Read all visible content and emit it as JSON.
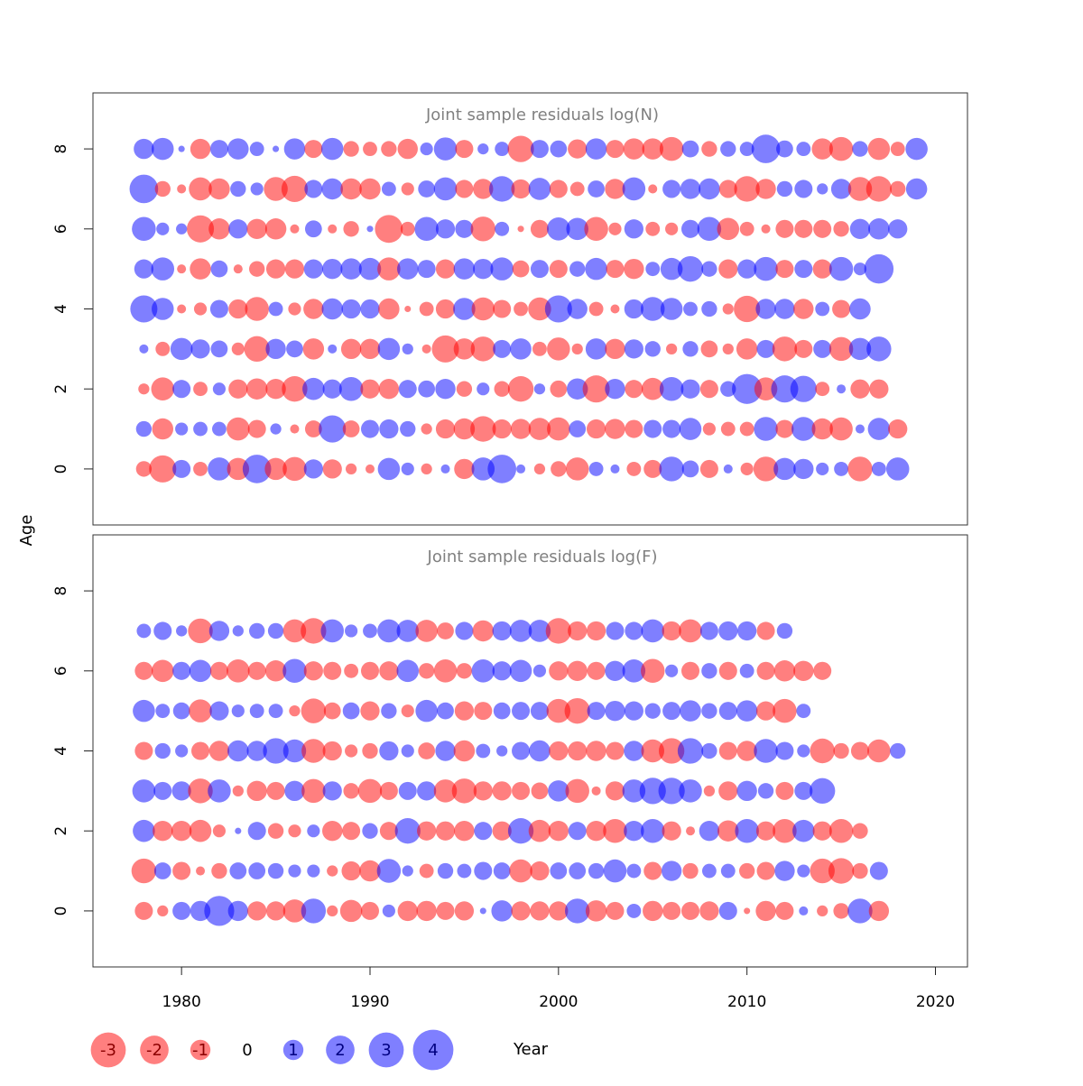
{
  "chart_data": {
    "type": "bubble",
    "shared_x": {
      "label": "Year",
      "range": [
        1975.3,
        2021.7
      ],
      "ticks": [
        1980,
        1990,
        2000,
        2010,
        2020
      ]
    },
    "shared_y": {
      "label": "Age",
      "range": [
        -1.4,
        9.4
      ],
      "ticks": [
        0,
        2,
        4,
        6,
        8
      ]
    },
    "colors": {
      "positive": "#0000FF",
      "negative": "#FF0000",
      "opacity": 0.5,
      "frame": "#333333",
      "title": "#808080"
    },
    "years": [
      1978,
      1979,
      1980,
      1981,
      1982,
      1983,
      1984,
      1985,
      1986,
      1987,
      1988,
      1989,
      1990,
      1991,
      1992,
      1993,
      1994,
      1995,
      1996,
      1997,
      1998,
      1999,
      2000,
      2001,
      2002,
      2003,
      2004,
      2005,
      2006,
      2007,
      2008,
      2009,
      2010,
      2011,
      2012,
      2013,
      2014,
      2015,
      2016,
      2017,
      2018,
      2019
    ],
    "legend": [
      {
        "label": "-3",
        "value": -3
      },
      {
        "label": "-2",
        "value": -2
      },
      {
        "label": "-1",
        "value": -1
      },
      {
        "label": "0",
        "value": 0
      },
      {
        "label": "1",
        "value": 1
      },
      {
        "label": "2",
        "value": 2
      },
      {
        "label": "3",
        "value": 3
      },
      {
        "label": "4",
        "value": 4
      }
    ],
    "panels": [
      {
        "title": "Joint sample residuals log(N)",
        "ages": [
          0,
          1,
          2,
          3,
          4,
          5,
          6,
          7,
          8
        ],
        "residuals": [
          [
            -0.6,
            -1.8,
            0.8,
            -0.5,
            1.3,
            -1.2,
            2.0,
            -1.2,
            -1.4,
            0.9,
            -0.9,
            -0.3,
            -0.2,
            1.2,
            0.4,
            -0.3,
            0.2,
            -1.0,
            1.3,
            2.0,
            0.2,
            -0.3,
            -0.6,
            -1.3,
            0.5,
            0.2,
            -0.5,
            -0.8,
            1.5,
            0.7,
            -0.8,
            0.2,
            -0.4,
            -1.5,
            1.2,
            1.0,
            0.4,
            0.5,
            -1.5,
            0.5,
            1.3
          ],
          [
            0.6,
            -1.1,
            0.4,
            0.5,
            0.5,
            -1.3,
            -0.8,
            0.3,
            -0.2,
            -0.7,
            1.8,
            -0.7,
            0.8,
            0.9,
            0.6,
            -0.3,
            -0.9,
            -1.1,
            -1.6,
            -0.9,
            -1.0,
            -1.2,
            -1.3,
            0.7,
            -0.9,
            -1.0,
            -0.8,
            0.8,
            0.8,
            1.2,
            -0.4,
            -0.5,
            -0.5,
            1.4,
            -0.8,
            1.4,
            -1.1,
            -1.3,
            0.2,
            1.2,
            -0.9
          ],
          [
            -0.3,
            -1.3,
            0.8,
            -0.5,
            0.4,
            -0.9,
            -1.1,
            -1.0,
            -1.6,
            1.2,
            0.9,
            1.4,
            -0.9,
            -1.0,
            0.8,
            0.7,
            1.0,
            -0.6,
            0.4,
            -0.6,
            -1.6,
            0.3,
            -0.7,
            1.1,
            -1.8,
            1.0,
            -0.8,
            -1.2,
            1.4,
            0.9,
            -0.8,
            0.6,
            2.2,
            -1.3,
            1.8,
            1.7,
            -0.5,
            0.2,
            -0.9,
            -0.9
          ],
          [
            0.2,
            -0.5,
            1.2,
            0.9,
            0.7,
            -0.4,
            -1.6,
            1.0,
            0.7,
            -1.1,
            0.2,
            -1.0,
            -1.0,
            1.2,
            0.3,
            -0.2,
            -1.8,
            -1.1,
            -1.5,
            0.8,
            1.1,
            -0.5,
            -1.3,
            -0.3,
            1.1,
            -1.0,
            0.9,
            0.6,
            -0.3,
            0.6,
            -0.7,
            -0.3,
            -1.1,
            0.8,
            -1.5,
            -0.8,
            0.8,
            -1.4,
            1.2,
            1.5
          ],
          [
            1.8,
            1.2,
            -0.2,
            -0.4,
            0.8,
            -0.9,
            -1.4,
            0.5,
            -0.4,
            -1.0,
            1.1,
            0.9,
            0.9,
            -1.1,
            -0.1,
            -0.5,
            -0.9,
            1.2,
            -1.3,
            -0.8,
            -0.5,
            -1.3,
            1.8,
            1.0,
            -0.5,
            -0.2,
            0.9,
            1.4,
            1.2,
            0.5,
            0.6,
            -0.3,
            -1.7,
            1.0,
            1.0,
            -1.0,
            0.5,
            -0.8,
            1.1
          ],
          [
            0.9,
            1.3,
            -0.2,
            -1.1,
            0.7,
            -0.2,
            -0.6,
            -0.9,
            -0.9,
            0.9,
            1.0,
            1.1,
            1.2,
            -1.3,
            1.1,
            0.8,
            -0.9,
            1.1,
            1.0,
            1.3,
            -0.7,
            0.8,
            -0.8,
            0.6,
            1.2,
            -0.8,
            -1.0,
            0.5,
            1.2,
            1.6,
            0.6,
            -0.9,
            0.9,
            1.4,
            -0.8,
            0.8,
            -0.9,
            1.4,
            0.4,
            2.1
          ],
          [
            1.4,
            0.4,
            0.3,
            -1.8,
            -1.1,
            0.9,
            -1.0,
            -1.1,
            -0.2,
            0.7,
            -0.2,
            -0.6,
            0.1,
            -1.9,
            -0.5,
            1.4,
            0.9,
            0.8,
            -1.5,
            0.5,
            -0.1,
            -0.8,
            1.3,
            1.2,
            -1.4,
            -0.4,
            0.9,
            -0.5,
            -0.4,
            0.8,
            1.4,
            -1.2,
            -0.5,
            -0.2,
            -0.8,
            -0.8,
            -0.8,
            -0.6,
            1.0,
            1.1,
            0.9
          ],
          [
            2.0,
            -0.6,
            -0.2,
            -1.3,
            -1.1,
            0.6,
            0.4,
            -1.4,
            -1.7,
            0.8,
            1.1,
            -1.1,
            -1.1,
            0.5,
            -0.4,
            0.7,
            1.3,
            -0.8,
            -1.0,
            1.6,
            -0.9,
            1.2,
            -0.8,
            -0.5,
            0.7,
            -1.0,
            1.3,
            -0.2,
            0.8,
            1.0,
            1.1,
            -0.8,
            -1.6,
            -1.0,
            0.6,
            0.8,
            0.3,
            1.0,
            -1.4,
            -1.6,
            -0.6,
            1.1
          ],
          [
            1.0,
            1.2,
            0.1,
            -1.0,
            0.8,
            1.1,
            0.5,
            0.1,
            1.1,
            -0.8,
            1.2,
            -0.6,
            -0.5,
            -0.6,
            -1.0,
            0.4,
            1.3,
            -0.8,
            0.3,
            0.5,
            -1.7,
            0.8,
            0.7,
            -0.9,
            1.1,
            -0.8,
            -1.1,
            -1.1,
            -1.4,
            0.7,
            -0.6,
            0.6,
            0.5,
            2.0,
            0.7,
            0.5,
            -1.1,
            -1.4,
            0.6,
            -1.2,
            -0.5,
            1.2
          ]
        ]
      },
      {
        "title": "Joint sample residuals log(F)",
        "ages": [
          0,
          1,
          2,
          3,
          4,
          5,
          6,
          7
        ],
        "residuals": [
          [
            -0.8,
            -0.3,
            0.8,
            1.0,
            2.2,
            1.0,
            -0.9,
            -0.9,
            -1.3,
            1.5,
            -0.3,
            -1.2,
            -0.8,
            0.4,
            -1.0,
            -1.0,
            -0.8,
            -0.9,
            0.1,
            1.1,
            -0.9,
            -0.9,
            -0.9,
            1.5,
            -1.1,
            -0.8,
            0.5,
            -1.0,
            -0.8,
            -0.8,
            -0.9,
            0.8,
            -0.1,
            -1.0,
            -0.8,
            0.2,
            -0.3,
            -0.6,
            1.5,
            -1.0
          ],
          [
            -1.5,
            0.7,
            -0.8,
            -0.2,
            -0.6,
            0.7,
            0.7,
            0.6,
            0.4,
            0.4,
            -0.3,
            -0.9,
            -1.1,
            1.4,
            0.3,
            -0.5,
            0.6,
            0.5,
            0.8,
            0.7,
            -1.3,
            -0.9,
            0.7,
            0.7,
            0.6,
            1.3,
            0.5,
            -0.8,
            1.0,
            -0.6,
            0.5,
            0.5,
            -0.6,
            -0.8,
            1.0,
            0.4,
            -1.5,
            -1.6,
            -0.6,
            0.8
          ],
          [
            1.2,
            -1.0,
            -1.0,
            -1.2,
            -0.4,
            0.1,
            0.8,
            -0.6,
            -0.4,
            0.4,
            -1.0,
            -0.8,
            0.6,
            -0.8,
            1.6,
            -0.9,
            -0.9,
            -1.0,
            0.8,
            -0.9,
            1.6,
            -1.2,
            -1.0,
            0.8,
            -1.0,
            -1.4,
            1.0,
            1.4,
            -0.9,
            -0.2,
            1.0,
            -1.1,
            1.4,
            -0.9,
            -1.4,
            1.2,
            -0.9,
            -1.4,
            -0.6
          ],
          [
            1.3,
            0.8,
            0.9,
            -1.5,
            1.3,
            -0.3,
            -1.0,
            -0.8,
            1.0,
            -1.4,
            0.9,
            -0.6,
            -1.4,
            -0.8,
            0.8,
            0.9,
            -1.3,
            -1.5,
            -0.9,
            -0.9,
            -0.8,
            -0.7,
            1.1,
            -1.4,
            -0.2,
            -0.9,
            1.3,
            1.7,
            1.7,
            1.3,
            -0.3,
            -0.9,
            1.0,
            0.6,
            -0.8,
            0.8,
            1.6
          ],
          [
            -0.8,
            0.6,
            0.4,
            -0.8,
            -1.0,
            1.1,
            1.0,
            1.6,
            1.3,
            -1.4,
            -0.9,
            -0.4,
            -0.6,
            0.9,
            0.4,
            -0.7,
            1.0,
            -1.1,
            0.5,
            0.3,
            0.8,
            1.1,
            -0.9,
            -0.9,
            -1.0,
            -0.8,
            1.0,
            -1.3,
            -1.6,
            1.6,
            0.6,
            -0.8,
            -1.0,
            1.4,
            0.8,
            0.4,
            -1.5,
            -0.6,
            -0.8,
            -1.3,
            0.6
          ],
          [
            1.2,
            0.5,
            0.7,
            -1.3,
            0.9,
            0.4,
            0.5,
            0.5,
            -0.3,
            -1.5,
            -0.7,
            0.7,
            -0.9,
            0.6,
            -0.4,
            1.2,
            0.7,
            -0.9,
            -0.8,
            0.7,
            0.8,
            0.8,
            -1.4,
            -1.6,
            0.8,
            1.0,
            0.9,
            0.6,
            0.8,
            1.1,
            0.6,
            0.8,
            1.1,
            -0.9,
            -1.4,
            0.5
          ],
          [
            -0.8,
            -1.2,
            0.8,
            1.2,
            -0.8,
            -1.3,
            -0.8,
            -1.1,
            1.4,
            -0.9,
            -0.8,
            -0.5,
            -0.8,
            -0.9,
            1.2,
            -0.6,
            -1.3,
            -0.6,
            1.3,
            0.9,
            1.2,
            0.4,
            -0.9,
            -1.0,
            -0.8,
            1.0,
            1.3,
            -1.4,
            0.4,
            -0.8,
            0.6,
            -0.8,
            0.5,
            -0.8,
            -1.1,
            -1.0,
            -0.8
          ],
          [
            0.5,
            0.8,
            0.3,
            -1.5,
            1.0,
            0.3,
            0.6,
            0.6,
            -1.3,
            -1.6,
            1.3,
            0.4,
            0.5,
            1.3,
            1.2,
            -1.2,
            -0.7,
            0.8,
            -1.1,
            0.9,
            1.2,
            1.2,
            -1.6,
            -0.9,
            -0.9,
            0.8,
            0.8,
            1.3,
            -0.9,
            -1.3,
            0.8,
            0.9,
            0.9,
            -0.8,
            0.6
          ]
        ]
      }
    ]
  }
}
